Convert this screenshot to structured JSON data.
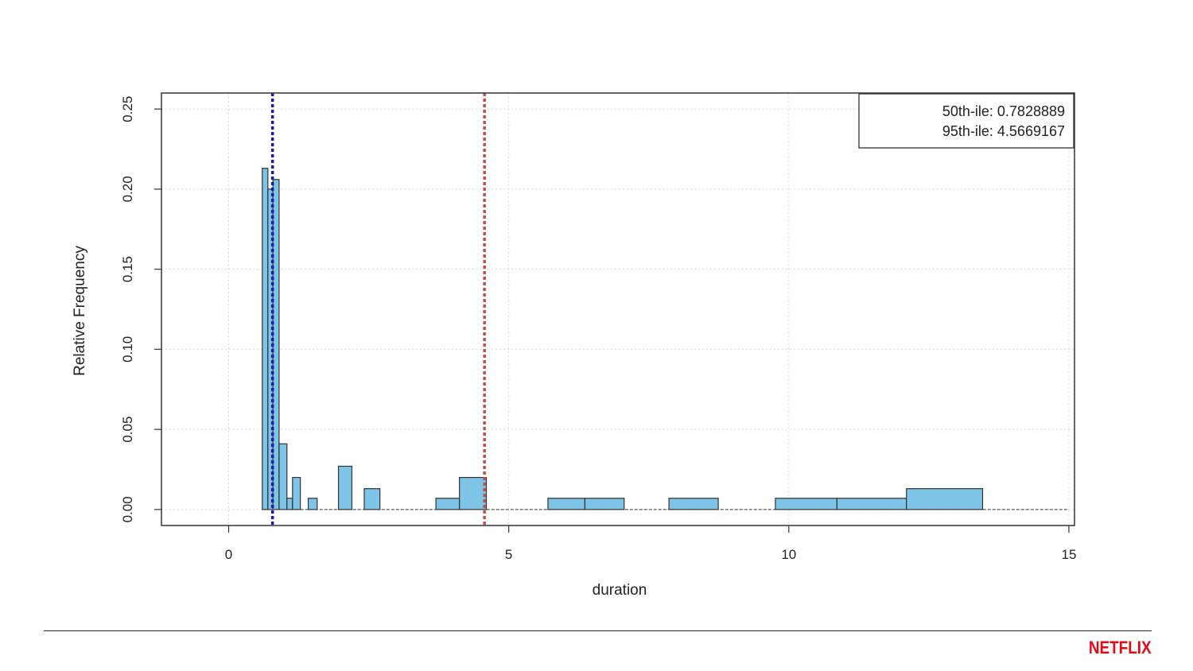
{
  "chart_data": {
    "type": "bar",
    "chart_kind": "histogram",
    "xlabel": "duration",
    "ylabel": "Relative Frequency",
    "xlim": [
      -1.2,
      15.1
    ],
    "ylim": [
      -0.01,
      0.26
    ],
    "xticks": [
      0,
      5,
      10,
      15
    ],
    "xtick_labels": [
      "0",
      "5",
      "10",
      "15"
    ],
    "yticks": [
      0.0,
      0.05,
      0.1,
      0.15,
      0.2,
      0.25
    ],
    "ytick_labels": [
      "0.00",
      "0.05",
      "0.10",
      "0.15",
      "0.20",
      "0.25"
    ],
    "grid": true,
    "bar_color": "#7ec4e6",
    "bins": [
      {
        "x0": 0.6,
        "x1": 0.7,
        "value": 0.213
      },
      {
        "x0": 0.7,
        "x1": 0.79,
        "value": 0.2
      },
      {
        "x0": 0.79,
        "x1": 0.9,
        "value": 0.206
      },
      {
        "x0": 0.9,
        "x1": 1.04,
        "value": 0.041
      },
      {
        "x0": 1.04,
        "x1": 1.14,
        "value": 0.007
      },
      {
        "x0": 1.14,
        "x1": 1.28,
        "value": 0.02
      },
      {
        "x0": 1.42,
        "x1": 1.58,
        "value": 0.007
      },
      {
        "x0": 1.96,
        "x1": 2.2,
        "value": 0.027
      },
      {
        "x0": 2.42,
        "x1": 2.7,
        "value": 0.013
      },
      {
        "x0": 3.7,
        "x1": 4.12,
        "value": 0.007
      },
      {
        "x0": 4.12,
        "x1": 4.6,
        "value": 0.02
      },
      {
        "x0": 5.7,
        "x1": 6.36,
        "value": 0.007
      },
      {
        "x0": 6.36,
        "x1": 7.06,
        "value": 0.007
      },
      {
        "x0": 7.86,
        "x1": 8.74,
        "value": 0.007
      },
      {
        "x0": 9.76,
        "x1": 10.86,
        "value": 0.007
      },
      {
        "x0": 10.86,
        "x1": 12.1,
        "value": 0.007
      },
      {
        "x0": 12.1,
        "x1": 13.46,
        "value": 0.013
      }
    ],
    "baseline_range": [
      0.6,
      15.0
    ],
    "percentile_lines": [
      {
        "value": 0.7828889,
        "color": "#1a1aa8"
      },
      {
        "value": 4.5669167,
        "color": "#c0504d"
      }
    ],
    "legend": {
      "position": "top-right",
      "entries": [
        "50th-ile: 0.7828889",
        "95th-ile: 4.5669167"
      ]
    }
  },
  "footer": {
    "brand": "NETFLIX",
    "brand_color": "#e50914"
  }
}
